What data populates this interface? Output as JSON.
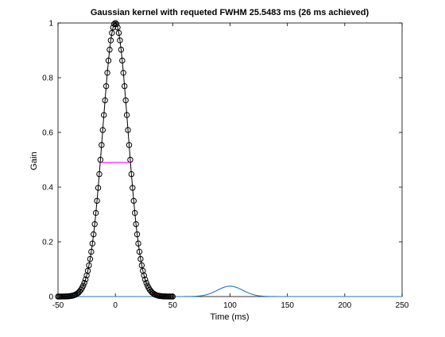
{
  "chart_data": {
    "type": "line",
    "title": "Gaussian kernel with requeted FWHM 25.5483 ms (26 ms achieved)",
    "xlabel": "Time (ms)",
    "ylabel": "Gain",
    "xlim": [
      -50,
      250
    ],
    "ylim": [
      0,
      1
    ],
    "xticks": [
      -50,
      0,
      50,
      100,
      150,
      200,
      250
    ],
    "yticks": [
      0,
      0.2,
      0.4,
      0.6,
      0.8,
      1
    ],
    "grid": false,
    "legend": "none",
    "kernel": {
      "type": "gaussian",
      "center": 0,
      "fwhm": 26,
      "x_range": [
        -50,
        50
      ],
      "sample_step": 1,
      "line_color": "#000000",
      "marker": "circle-open",
      "marker_color": "#000000"
    },
    "fwhm_marker": {
      "x": [
        -13,
        13
      ],
      "y": 0.49,
      "color": "#ff00ff"
    },
    "smoothed_signal": {
      "center": 100,
      "peak": 0.038,
      "fwhm": 26,
      "x_range": [
        -50,
        250
      ],
      "baseline": 0,
      "color": "#1f77b4"
    }
  }
}
